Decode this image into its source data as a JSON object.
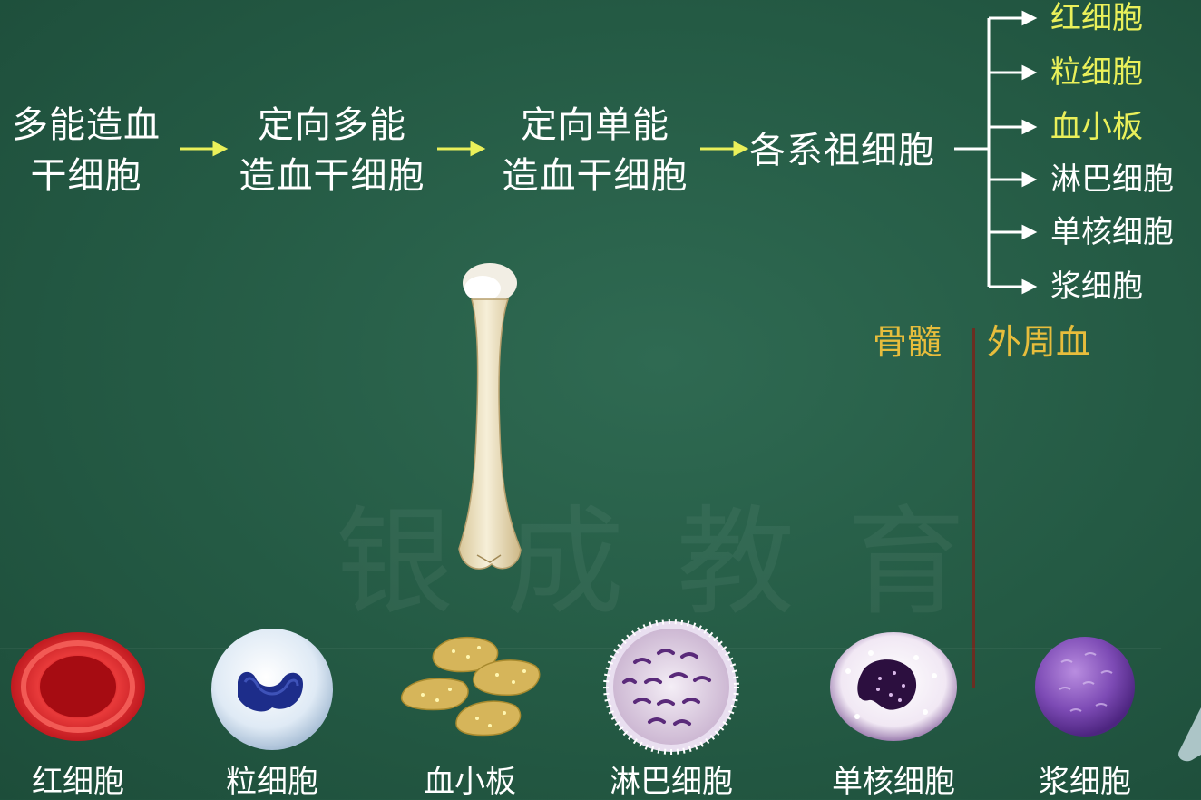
{
  "flow": {
    "stage1": {
      "line1": "多能造血",
      "line2": "干细胞"
    },
    "stage2": {
      "line1": "定向多能",
      "line2": "造血干细胞"
    },
    "stage3": {
      "line1": "定向单能",
      "line2": "造血干细胞"
    },
    "stage4": "各系祖细胞",
    "outputs": [
      {
        "label": "红细胞",
        "color": "#eaf05a"
      },
      {
        "label": "粒细胞",
        "color": "#eaf05a"
      },
      {
        "label": "血小板",
        "color": "#eaf05a"
      },
      {
        "label": "淋巴细胞",
        "color": "#ffffff"
      },
      {
        "label": "单核细胞",
        "color": "#ffffff"
      },
      {
        "label": "浆细胞",
        "color": "#ffffff"
      }
    ],
    "arrow_color": "#eaf05a"
  },
  "location": {
    "left": "骨髓",
    "right": "外周血",
    "color": "#e7bd3c"
  },
  "watermark": "银成教育",
  "cells": [
    {
      "label": "红细胞",
      "icon": "red-blood-cell-icon"
    },
    {
      "label": "粒细胞",
      "icon": "granulocyte-icon"
    },
    {
      "label": "血小板",
      "icon": "platelet-icon"
    },
    {
      "label": "淋巴细胞",
      "icon": "lymphocyte-icon"
    },
    {
      "label": "单核细胞",
      "icon": "monocyte-icon"
    },
    {
      "label": "浆细胞",
      "icon": "plasma-cell-icon"
    }
  ]
}
